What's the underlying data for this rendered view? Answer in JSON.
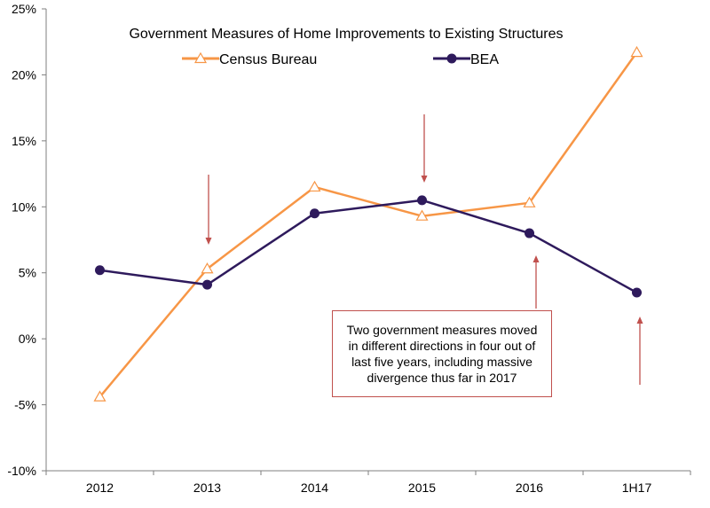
{
  "chart_data": {
    "type": "line",
    "title": "Government Measures of Home Improvements to Existing Structures",
    "categories": [
      "2012",
      "2013",
      "2014",
      "2015",
      "2016",
      "1H17"
    ],
    "series": [
      {
        "name": "Census Bureau",
        "values": [
          -4.4,
          5.3,
          11.5,
          9.3,
          10.3,
          21.7
        ],
        "color": "#f79646",
        "marker": "open-triangle"
      },
      {
        "name": "BEA",
        "values": [
          5.2,
          4.1,
          9.5,
          10.5,
          8.0,
          3.5
        ],
        "color": "#2e1a5c",
        "marker": "filled-circle"
      }
    ],
    "ylim": [
      -10,
      25
    ],
    "yticks": [
      -10,
      -5,
      0,
      5,
      10,
      15,
      20,
      25
    ],
    "ytick_labels": [
      "-10%",
      "-5%",
      "0%",
      "5%",
      "10%",
      "15%",
      "20%",
      "25%"
    ],
    "xlabel": "",
    "ylabel": "",
    "grid": false,
    "legend": "top",
    "annotation": "Two government measures moved in different directions in four out of last five years, including massive divergence thus far in 2017",
    "arrow_color": "#c0504d"
  }
}
